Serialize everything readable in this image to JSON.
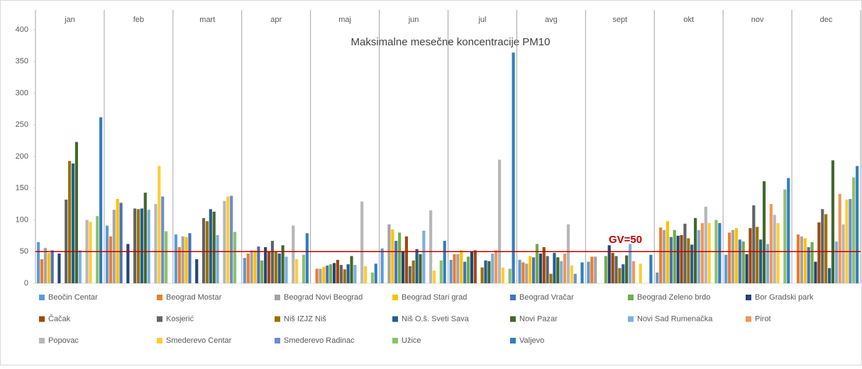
{
  "chart_data": {
    "type": "bar",
    "title": "Maksimalne mesečne koncentracije PM10",
    "categories": [
      "jan",
      "feb",
      "mart",
      "apr",
      "maj",
      "jun",
      "jul",
      "avg",
      "sept",
      "okt",
      "nov",
      "dec"
    ],
    "ylim": [
      0,
      400
    ],
    "yticks": [
      0,
      50,
      100,
      150,
      200,
      250,
      300,
      350,
      400
    ],
    "reference_line": {
      "value": 50,
      "label": "GV=50",
      "color": "#c00000"
    },
    "legend": "bottom",
    "series": [
      {
        "name": "Beočin Centar",
        "color": "#5b9bd5",
        "values": [
          65,
          91,
          77,
          40,
          null,
          55,
          37,
          37,
          34,
          17,
          45,
          null
        ]
      },
      {
        "name": "Beograd Mostar",
        "color": "#ed7d31",
        "values": [
          38,
          74,
          57,
          47,
          23,
          null,
          46,
          33,
          42,
          88,
          80,
          77
        ]
      },
      {
        "name": "Beograd Novi Beograd",
        "color": "#a5a5a5",
        "values": [
          56,
          116,
          74,
          52,
          23,
          93,
          46,
          31,
          42,
          84,
          84,
          74
        ]
      },
      {
        "name": "Beograd Stari grad",
        "color": "#ffc000",
        "values": [
          48,
          133,
          73,
          52,
          26,
          85,
          52,
          43,
          null,
          98,
          87,
          71
        ]
      },
      {
        "name": "Beograd Vračar",
        "color": "#4472c4",
        "values": [
          52,
          127,
          79,
          58,
          28,
          67,
          34,
          41,
          null,
          73,
          69,
          57
        ]
      },
      {
        "name": "Beograd Zeleno brdo",
        "color": "#70ad47",
        "values": [
          null,
          null,
          null,
          36,
          30,
          80,
          42,
          62,
          43,
          84,
          66,
          65
        ]
      },
      {
        "name": "Bor Gradski park",
        "color": "#264478",
        "values": [
          47,
          62,
          38,
          57,
          32,
          51,
          50,
          47,
          60,
          75,
          46,
          34
        ]
      },
      {
        "name": "Čačak",
        "color": "#9e480e",
        "values": [
          null,
          null,
          null,
          50,
          37,
          74,
          52,
          57,
          48,
          76,
          87,
          96
        ]
      },
      {
        "name": "Kosjerić",
        "color": "#636363",
        "values": [
          132,
          118,
          103,
          67,
          29,
          27,
          null,
          43,
          43,
          94,
          123,
          117
        ]
      },
      {
        "name": "Niš IZJZ Niš",
        "color": "#997300",
        "values": [
          193,
          117,
          98,
          50,
          22,
          36,
          25,
          15,
          24,
          71,
          89,
          109
        ]
      },
      {
        "name": "Niš O.š. Sveti Sava",
        "color": "#255e91",
        "values": [
          189,
          118,
          117,
          47,
          30,
          54,
          36,
          48,
          30,
          61,
          69,
          24
        ]
      },
      {
        "name": "Novi Pazar",
        "color": "#43682b",
        "values": [
          223,
          143,
          113,
          60,
          43,
          46,
          35,
          41,
          44,
          103,
          161,
          194
        ]
      },
      {
        "name": "Novi Sad Rumenačka",
        "color": "#7cafdd",
        "values": [
          52,
          116,
          76,
          42,
          29,
          83,
          47,
          35,
          62,
          84,
          62,
          66
        ]
      },
      {
        "name": "Pirot",
        "color": "#f1975a",
        "values": [
          null,
          null,
          null,
          null,
          null,
          null,
          52,
          47,
          35,
          95,
          125,
          141
        ]
      },
      {
        "name": "Popovac",
        "color": "#b7b7b7",
        "values": [
          100,
          125,
          130,
          91,
          129,
          115,
          195,
          93,
          null,
          121,
          108,
          93
        ]
      },
      {
        "name": "Smederevo Centar",
        "color": "#ffcd33",
        "values": [
          97,
          185,
          137,
          38,
          27,
          20,
          25,
          28,
          31,
          95,
          95,
          132
        ]
      },
      {
        "name": "Smederevo Radinac",
        "color": "#698ed0",
        "values": [
          null,
          137,
          138,
          null,
          null,
          null,
          null,
          15,
          null,
          null,
          null,
          133
        ]
      },
      {
        "name": "Užice",
        "color": "#8cc168",
        "values": [
          106,
          82,
          81,
          45,
          17,
          36,
          23,
          null,
          null,
          100,
          148,
          167
        ]
      },
      {
        "name": "Valjevo",
        "color": "#327dc2",
        "values": [
          262,
          null,
          null,
          79,
          31,
          67,
          364,
          33,
          45,
          95,
          166,
          185
        ]
      }
    ]
  }
}
